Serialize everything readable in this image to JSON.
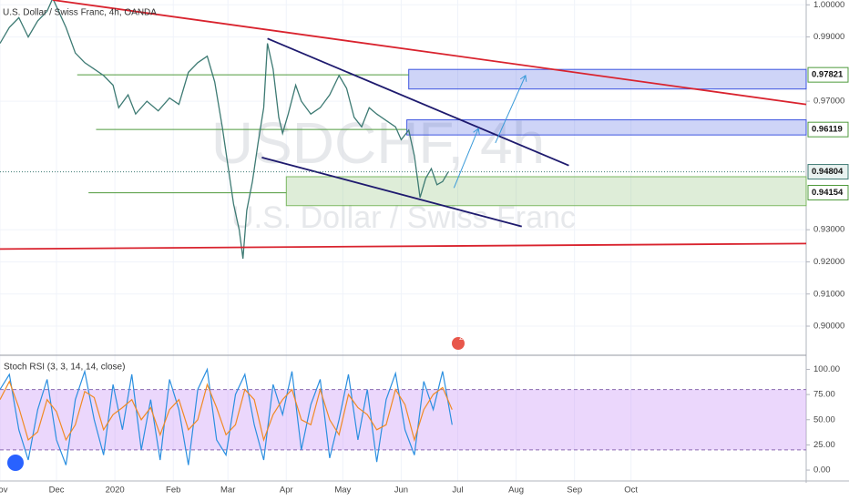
{
  "chart_data": [
    {
      "type": "line",
      "title": "U.S. Dollar / Swiss Franc, 4h, OANDA",
      "watermark": "USDCHF, 4h",
      "watermark_subtitle": "U.S. Dollar / Swiss Franc",
      "badge": "2",
      "xlim": [
        0,
        428
      ],
      "xticks": [
        {
          "value": 0,
          "label": "Nov"
        },
        {
          "value": 30,
          "label": "Dec"
        },
        {
          "value": 61,
          "label": "2020"
        },
        {
          "value": 92,
          "label": "Feb"
        },
        {
          "value": 121,
          "label": "Mar"
        },
        {
          "value": 152,
          "label": "Apr"
        },
        {
          "value": 182,
          "label": "May"
        },
        {
          "value": 213,
          "label": "Jun"
        },
        {
          "value": 243,
          "label": "Jul"
        },
        {
          "value": 274,
          "label": "Aug"
        },
        {
          "value": 305,
          "label": "Sep"
        },
        {
          "value": 335,
          "label": "Oct"
        }
      ],
      "ylim": [
        0.8915,
        1.0015
      ],
      "yticks": [
        {
          "value": 1.0,
          "label": "1.00000"
        },
        {
          "value": 0.99,
          "label": "0.99000"
        },
        {
          "value": 0.97,
          "label": "0.97000"
        },
        {
          "value": 0.93,
          "label": "0.93000"
        },
        {
          "value": 0.92,
          "label": "0.92000"
        },
        {
          "value": 0.91,
          "label": "0.91000"
        },
        {
          "value": 0.9,
          "label": "0.90000"
        }
      ],
      "price_labels": [
        {
          "value": 0.97821,
          "label": "0.97821"
        },
        {
          "value": 0.96119,
          "label": "0.96119"
        },
        {
          "value": 0.94804,
          "label": "0.94804"
        },
        {
          "value": 0.94154,
          "label": "0.94154"
        }
      ],
      "x": [
        0,
        5,
        10,
        15,
        20,
        25,
        28,
        35,
        40,
        45,
        50,
        55,
        60,
        63,
        68,
        72,
        78,
        84,
        90,
        95,
        100,
        105,
        110,
        114,
        118,
        121,
        124,
        127,
        129,
        131,
        134,
        137,
        140,
        142,
        145,
        148,
        150,
        153,
        157,
        160,
        165,
        170,
        175,
        180,
        184,
        188,
        192,
        196,
        200,
        205,
        210,
        213,
        217,
        220,
        223,
        226,
        229,
        232,
        235,
        238
      ],
      "series": [
        {
          "name": "USDCHF",
          "color": "#3d7a73",
          "values": [
            0.988,
            0.993,
            0.996,
            0.99,
            0.995,
            0.998,
            1.002,
            0.993,
            0.985,
            0.982,
            0.98,
            0.978,
            0.975,
            0.968,
            0.972,
            0.966,
            0.97,
            0.967,
            0.971,
            0.969,
            0.979,
            0.982,
            0.984,
            0.976,
            0.962,
            0.95,
            0.938,
            0.93,
            0.921,
            0.936,
            0.945,
            0.957,
            0.968,
            0.988,
            0.98,
            0.965,
            0.96,
            0.966,
            0.975,
            0.97,
            0.966,
            0.968,
            0.972,
            0.978,
            0.974,
            0.965,
            0.962,
            0.968,
            0.966,
            0.964,
            0.962,
            0.958,
            0.961,
            0.953,
            0.94,
            0.946,
            0.949,
            0.944,
            0.945,
            0.948
          ]
        }
      ],
      "levels": [
        {
          "x": [
            41,
            217
          ],
          "y": 0.9782,
          "color": "#4f9a3c"
        },
        {
          "x": [
            51,
            216
          ],
          "y": 0.9612,
          "color": "#4f9a3c"
        },
        {
          "x": [
            47,
            152
          ],
          "y": 0.9415,
          "color": "#4f9a3c"
        }
      ],
      "zones": [
        {
          "x": [
            217,
            428
          ],
          "y": [
            0.9738,
            0.9799
          ],
          "color": "#3d55e0"
        },
        {
          "x": [
            216,
            428
          ],
          "y": [
            0.9595,
            0.9642
          ],
          "color": "#3d55e0"
        },
        {
          "x": [
            152,
            428
          ],
          "y": [
            0.9375,
            0.9465
          ],
          "color": "#7cb862"
        }
      ],
      "trendlines": [
        {
          "points": [
            [
              28,
              1.0015
            ],
            [
              428,
              0.969
            ]
          ],
          "color": "#d9232e"
        },
        {
          "points": [
            [
              0,
              0.924
            ],
            [
              428,
              0.9257
            ]
          ],
          "color": "#d9232e"
        },
        {
          "points": [
            [
              142,
              0.9895
            ],
            [
              302,
              0.95
            ]
          ],
          "color": "#1e1a6e"
        },
        {
          "points": [
            [
              139,
              0.9525
            ],
            [
              277,
              0.931
            ]
          ],
          "color": "#1e1a6e"
        }
      ],
      "arrows": [
        {
          "points": [
            [
              241,
              0.943
            ],
            [
              254,
              0.9615
            ]
          ],
          "color": "#3a9ad9"
        },
        {
          "points": [
            [
              263,
              0.957
            ],
            [
              279,
              0.978
            ]
          ],
          "color": "#3a9ad9"
        }
      ]
    },
    {
      "type": "line",
      "title": "Stoch RSI (3, 3, 14, 14, close)",
      "xlim": [
        0,
        428
      ],
      "ylim": [
        -9,
        114
      ],
      "yticks": [
        {
          "value": 100,
          "label": "100.00"
        },
        {
          "value": 75,
          "label": "75.00"
        },
        {
          "value": 50,
          "label": "50.00"
        },
        {
          "value": 25,
          "label": "25.00"
        },
        {
          "value": 0,
          "label": "0.00"
        }
      ],
      "bands": [
        20,
        80
      ],
      "band_color": "#c68cf5",
      "x": [
        0,
        5,
        10,
        15,
        20,
        25,
        30,
        35,
        40,
        45,
        50,
        55,
        60,
        65,
        70,
        75,
        80,
        85,
        90,
        95,
        100,
        105,
        110,
        115,
        120,
        125,
        130,
        135,
        140,
        145,
        150,
        155,
        160,
        165,
        170,
        175,
        180,
        185,
        190,
        195,
        200,
        205,
        210,
        215,
        220,
        225,
        230,
        235,
        240
      ],
      "series": [
        {
          "name": "K",
          "color": "#2b8fe0",
          "values": [
            80,
            95,
            40,
            10,
            60,
            90,
            30,
            5,
            70,
            98,
            50,
            15,
            85,
            40,
            95,
            20,
            70,
            10,
            90,
            60,
            5,
            80,
            100,
            30,
            15,
            75,
            95,
            45,
            10,
            85,
            55,
            98,
            20,
            65,
            90,
            12,
            50,
            95,
            30,
            80,
            8,
            70,
            96,
            40,
            15,
            88,
            60,
            98,
            45
          ]
        },
        {
          "name": "D",
          "color": "#f08a24",
          "values": [
            70,
            88,
            62,
            30,
            38,
            70,
            58,
            30,
            45,
            78,
            72,
            40,
            55,
            62,
            70,
            50,
            62,
            35,
            60,
            70,
            40,
            50,
            85,
            62,
            35,
            45,
            80,
            70,
            30,
            55,
            70,
            80,
            50,
            45,
            80,
            50,
            35,
            75,
            62,
            55,
            40,
            45,
            80,
            65,
            30,
            60,
            75,
            82,
            60
          ]
        }
      ]
    }
  ]
}
